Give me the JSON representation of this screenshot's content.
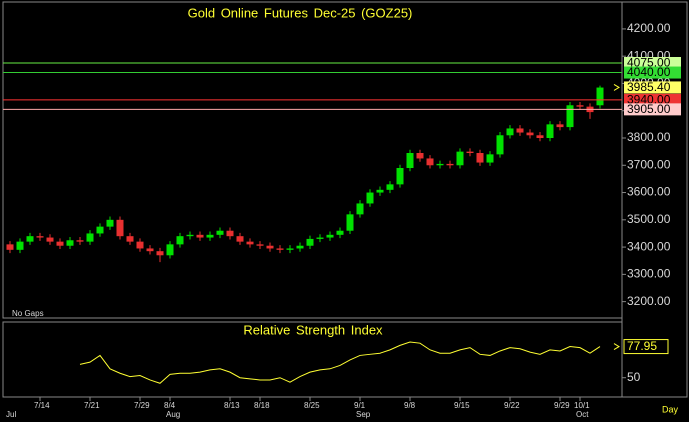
{
  "chart_data": [
    {
      "type": "candlestick",
      "title": "Gold Online Futures Dec-25 (GOZ25)",
      "annotations": [
        "No Gaps"
      ],
      "period": "Day",
      "categories": [
        null,
        null,
        null,
        "7/14",
        null,
        null,
        null,
        null,
        "7/21",
        null,
        null,
        null,
        null,
        "7/29",
        null,
        null,
        "8/4",
        null,
        null,
        null,
        null,
        null,
        "8/13",
        null,
        null,
        "8/18",
        null,
        null,
        null,
        null,
        "8/25",
        null,
        null,
        null,
        null,
        "9/1",
        null,
        null,
        null,
        null,
        "9/8",
        null,
        null,
        null,
        null,
        "9/15",
        null,
        null,
        null,
        null,
        "9/22",
        null,
        null,
        null,
        null,
        "9/29",
        null,
        "10/1",
        null,
        null
      ],
      "months": [
        "Jul",
        null,
        null,
        null,
        null,
        null,
        null,
        null,
        null,
        null,
        null,
        null,
        null,
        null,
        null,
        null,
        "Aug",
        null,
        null,
        null,
        null,
        null,
        null,
        null,
        null,
        null,
        null,
        null,
        null,
        null,
        null,
        null,
        null,
        null,
        null,
        "Sep",
        null,
        null,
        null,
        null,
        null,
        null,
        null,
        null,
        null,
        null,
        null,
        null,
        null,
        null,
        null,
        null,
        null,
        null,
        null,
        null,
        null,
        "Oct",
        null,
        null
      ],
      "open": [
        3410,
        3390,
        3420,
        3440,
        3435,
        3420,
        3405,
        3425,
        3420,
        3450,
        3475,
        3500,
        3440,
        3420,
        3395,
        3385,
        3370,
        3410,
        3440,
        3445,
        3435,
        3445,
        3460,
        3440,
        3420,
        3410,
        3405,
        3395,
        3390,
        3395,
        3405,
        3430,
        3435,
        3445,
        3460,
        3520,
        3560,
        3600,
        3610,
        3630,
        3690,
        3745,
        3725,
        3700,
        3705,
        3700,
        3750,
        3745,
        3710,
        3740,
        3810,
        3835,
        3820,
        3810,
        3800,
        3850,
        3840,
        3920,
        3915,
        3920
      ],
      "high": [
        3422,
        3432,
        3452,
        3452,
        3447,
        3432,
        3437,
        3437,
        3462,
        3487,
        3512,
        3512,
        3452,
        3432,
        3407,
        3397,
        3422,
        3452,
        3457,
        3457,
        3457,
        3472,
        3472,
        3452,
        3432,
        3422,
        3417,
        3407,
        3407,
        3417,
        3442,
        3447,
        3457,
        3472,
        3532,
        3572,
        3612,
        3622,
        3642,
        3702,
        3757,
        3757,
        3737,
        3717,
        3717,
        3762,
        3762,
        3757,
        3752,
        3822,
        3847,
        3847,
        3832,
        3822,
        3862,
        3862,
        3932,
        3932,
        3927,
        3992
      ],
      "low": [
        3378,
        3378,
        3408,
        3423,
        3408,
        3393,
        3393,
        3408,
        3408,
        3438,
        3463,
        3428,
        3408,
        3383,
        3373,
        3345,
        3358,
        3398,
        3428,
        3423,
        3423,
        3433,
        3428,
        3408,
        3398,
        3393,
        3383,
        3378,
        3378,
        3383,
        3393,
        3418,
        3423,
        3433,
        3448,
        3508,
        3548,
        3588,
        3598,
        3618,
        3678,
        3713,
        3688,
        3688,
        3688,
        3688,
        3733,
        3698,
        3698,
        3728,
        3798,
        3808,
        3798,
        3788,
        3788,
        3828,
        3828,
        3903,
        3870,
        3908
      ],
      "close": [
        3390,
        3420,
        3440,
        3435,
        3420,
        3405,
        3425,
        3420,
        3450,
        3475,
        3500,
        3440,
        3420,
        3395,
        3385,
        3370,
        3410,
        3440,
        3445,
        3435,
        3445,
        3460,
        3440,
        3420,
        3410,
        3405,
        3395,
        3390,
        3395,
        3405,
        3430,
        3435,
        3445,
        3460,
        3520,
        3560,
        3600,
        3610,
        3630,
        3690,
        3745,
        3725,
        3700,
        3705,
        3700,
        3750,
        3745,
        3710,
        3740,
        3810,
        3835,
        3820,
        3810,
        3800,
        3850,
        3840,
        3920,
        3915,
        3895,
        3985
      ],
      "up_color": "#00e000",
      "down_color": "#e83030",
      "ylim": [
        3140,
        4295
      ],
      "yticks": [
        {
          "value": 3200,
          "label": "3200.00"
        },
        {
          "value": 3300,
          "label": "3300.00"
        },
        {
          "value": 3400,
          "label": "3400.00"
        },
        {
          "value": 3500,
          "label": "3500.00"
        },
        {
          "value": 3600,
          "label": "3600.00"
        },
        {
          "value": 3700,
          "label": "3700.00"
        },
        {
          "value": 3800,
          "label": "3800.00"
        },
        {
          "value": 3900,
          "label": "3900.00"
        },
        {
          "value": 4000,
          "label": "4000.00"
        },
        {
          "value": 4100,
          "label": "4100.00"
        },
        {
          "value": 4200,
          "label": "4200.00"
        }
      ],
      "levels": [
        {
          "value": 4075,
          "label": "4075.00",
          "color": "#66ee44",
          "box_color": "#ccff99"
        },
        {
          "value": 4040,
          "label": "4040.00",
          "color": "#33cc33",
          "box_color": "#33dd33"
        },
        {
          "value": 3940,
          "label": "3940.00",
          "color": "#ff3333",
          "box_color": "#ee3333"
        },
        {
          "value": 3905,
          "label": "3905.00",
          "color": "#ffaaaa",
          "box_color": "#ffcccc"
        }
      ],
      "last": {
        "value": 3985.4,
        "label": "3985.40",
        "box_color": "#ffff66"
      }
    },
    {
      "type": "line",
      "title": "Relative Strength Index",
      "color": "#ffff33",
      "values": [
        null,
        null,
        null,
        null,
        null,
        null,
        null,
        62,
        64,
        70,
        58,
        54,
        51,
        52,
        48,
        45,
        53,
        54,
        54,
        55,
        57,
        58,
        55,
        50,
        49,
        48,
        48,
        50,
        46,
        51,
        55,
        57,
        58,
        61,
        66,
        70,
        71,
        72,
        75,
        79,
        82,
        81,
        75,
        72,
        72,
        75,
        77,
        71,
        70,
        74,
        77,
        76,
        73,
        71,
        75,
        74,
        78,
        77,
        72,
        77.95
      ],
      "ylim": [
        30,
        100
      ],
      "yticks": [
        50
      ]
    }
  ]
}
